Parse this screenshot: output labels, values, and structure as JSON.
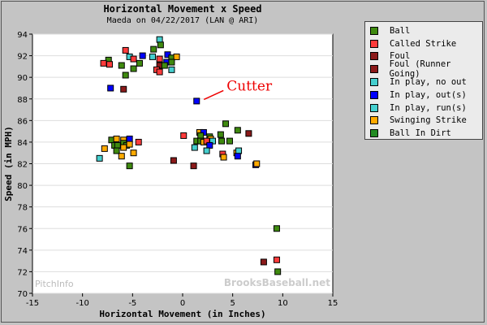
{
  "chart_data": {
    "type": "scatter",
    "title": "Horizontal Movement x Speed",
    "subtitle": "Maeda on 04/22/2017 (LAN @ ARI)",
    "xlabel": "Horizontal Movement (in Inches)",
    "ylabel": "Speed (in MPH)",
    "xlim": [
      -15,
      15
    ],
    "ylim": [
      70,
      94
    ],
    "xticks": [
      -15,
      -10,
      -5,
      0,
      5,
      10,
      15
    ],
    "yticks": [
      70,
      72,
      74,
      76,
      78,
      80,
      82,
      84,
      86,
      88,
      90,
      92,
      94
    ],
    "grid": "horizontal",
    "legend_position": "right",
    "annotation": {
      "text": "Cutter",
      "x": 1.4,
      "y": 87.8
    },
    "watermarks": [
      "PitchInfo",
      "BrooksBaseball.net"
    ],
    "categories": [
      {
        "name": "Ball",
        "color": "#3f8a0f"
      },
      {
        "name": "Called Strike",
        "color": "#ff3b3b"
      },
      {
        "name": "Foul",
        "color": "#8b1a1a"
      },
      {
        "name": "Foul (Runner Going)",
        "color": "#8b1a1a"
      },
      {
        "name": "In play, no out",
        "color": "#45cfcf"
      },
      {
        "name": "In play, out(s)",
        "color": "#0000ff"
      },
      {
        "name": "In play, run(s)",
        "color": "#45cfcf"
      },
      {
        "name": "Swinging Strike",
        "color": "#ffaa00"
      },
      {
        "name": "Ball In Dirt",
        "color": "#228b22"
      }
    ],
    "points": [
      {
        "x": -2.3,
        "y": 93.5,
        "c": 4
      },
      {
        "x": -2.2,
        "y": 93.0,
        "c": 0
      },
      {
        "x": -2.9,
        "y": 92.6,
        "c": 0
      },
      {
        "x": -5.7,
        "y": 92.5,
        "c": 1
      },
      {
        "x": -4.0,
        "y": 92.0,
        "c": 5
      },
      {
        "x": -5.3,
        "y": 91.9,
        "c": 4
      },
      {
        "x": -3.0,
        "y": 91.9,
        "c": 4
      },
      {
        "x": -4.9,
        "y": 91.7,
        "c": 1
      },
      {
        "x": -2.3,
        "y": 91.7,
        "c": 1
      },
      {
        "x": -1.5,
        "y": 92.1,
        "c": 5
      },
      {
        "x": -1.1,
        "y": 91.8,
        "c": 0
      },
      {
        "x": -0.6,
        "y": 91.9,
        "c": 7
      },
      {
        "x": -1.6,
        "y": 91.4,
        "c": 5
      },
      {
        "x": -1.1,
        "y": 91.4,
        "c": 0
      },
      {
        "x": -4.3,
        "y": 91.3,
        "c": 0
      },
      {
        "x": -2.3,
        "y": 91.1,
        "c": 2
      },
      {
        "x": -1.8,
        "y": 91.1,
        "c": 0
      },
      {
        "x": -7.4,
        "y": 91.6,
        "c": 0
      },
      {
        "x": -7.9,
        "y": 91.3,
        "c": 1
      },
      {
        "x": -7.3,
        "y": 91.2,
        "c": 1
      },
      {
        "x": -6.1,
        "y": 91.1,
        "c": 0
      },
      {
        "x": -4.9,
        "y": 90.8,
        "c": 0
      },
      {
        "x": -2.6,
        "y": 90.7,
        "c": 1
      },
      {
        "x": -2.3,
        "y": 90.5,
        "c": 1
      },
      {
        "x": -1.1,
        "y": 90.7,
        "c": 4
      },
      {
        "x": -5.7,
        "y": 90.2,
        "c": 0
      },
      {
        "x": -7.2,
        "y": 89.0,
        "c": 5
      },
      {
        "x": -5.9,
        "y": 88.9,
        "c": 2
      },
      {
        "x": 1.4,
        "y": 87.8,
        "c": 5
      },
      {
        "x": -7.1,
        "y": 84.2,
        "c": 0
      },
      {
        "x": -6.6,
        "y": 84.3,
        "c": 7
      },
      {
        "x": -5.9,
        "y": 84.2,
        "c": 7
      },
      {
        "x": -5.3,
        "y": 84.3,
        "c": 5
      },
      {
        "x": -4.4,
        "y": 84.0,
        "c": 1
      },
      {
        "x": -6.8,
        "y": 83.7,
        "c": 0
      },
      {
        "x": -6.5,
        "y": 83.7,
        "c": 0
      },
      {
        "x": -5.9,
        "y": 83.9,
        "c": 0
      },
      {
        "x": -5.6,
        "y": 83.7,
        "c": 0
      },
      {
        "x": -5.3,
        "y": 83.8,
        "c": 7
      },
      {
        "x": -5.9,
        "y": 83.5,
        "c": 7
      },
      {
        "x": -7.8,
        "y": 83.4,
        "c": 7
      },
      {
        "x": -6.6,
        "y": 83.2,
        "c": 0
      },
      {
        "x": -4.9,
        "y": 83.0,
        "c": 7
      },
      {
        "x": -6.1,
        "y": 82.7,
        "c": 7
      },
      {
        "x": -8.3,
        "y": 82.5,
        "c": 4
      },
      {
        "x": -5.3,
        "y": 81.8,
        "c": 0
      },
      {
        "x": 4.3,
        "y": 85.7,
        "c": 0
      },
      {
        "x": 5.5,
        "y": 85.1,
        "c": 0
      },
      {
        "x": 6.6,
        "y": 84.8,
        "c": 2
      },
      {
        "x": 0.1,
        "y": 84.6,
        "c": 1
      },
      {
        "x": 1.7,
        "y": 84.9,
        "c": 7
      },
      {
        "x": 2.1,
        "y": 84.9,
        "c": 5
      },
      {
        "x": 1.8,
        "y": 84.6,
        "c": 0
      },
      {
        "x": 2.7,
        "y": 84.5,
        "c": 0
      },
      {
        "x": 2.8,
        "y": 84.3,
        "c": 7
      },
      {
        "x": 3.0,
        "y": 84.1,
        "c": 4
      },
      {
        "x": 3.8,
        "y": 84.7,
        "c": 0
      },
      {
        "x": 1.4,
        "y": 84.1,
        "c": 0
      },
      {
        "x": 1.8,
        "y": 84.1,
        "c": 0
      },
      {
        "x": 2.1,
        "y": 84.0,
        "c": 7
      },
      {
        "x": 2.4,
        "y": 84.1,
        "c": 1
      },
      {
        "x": 3.9,
        "y": 84.1,
        "c": 0
      },
      {
        "x": 4.7,
        "y": 84.1,
        "c": 0
      },
      {
        "x": 2.7,
        "y": 83.7,
        "c": 5
      },
      {
        "x": 1.2,
        "y": 83.5,
        "c": 4
      },
      {
        "x": 2.4,
        "y": 83.2,
        "c": 4
      },
      {
        "x": 4.0,
        "y": 82.9,
        "c": 1
      },
      {
        "x": 4.1,
        "y": 82.6,
        "c": 7
      },
      {
        "x": 5.4,
        "y": 83.0,
        "c": 7
      },
      {
        "x": 5.6,
        "y": 83.2,
        "c": 4
      },
      {
        "x": 5.5,
        "y": 82.7,
        "c": 5
      },
      {
        "x": -0.9,
        "y": 82.3,
        "c": 2
      },
      {
        "x": 1.1,
        "y": 81.8,
        "c": 2
      },
      {
        "x": 7.3,
        "y": 81.9,
        "c": 5
      },
      {
        "x": 7.4,
        "y": 82.0,
        "c": 7
      },
      {
        "x": 9.4,
        "y": 76.0,
        "c": 0
      },
      {
        "x": 8.1,
        "y": 72.9,
        "c": 2
      },
      {
        "x": 9.4,
        "y": 73.1,
        "c": 1
      },
      {
        "x": 9.5,
        "y": 72.0,
        "c": 0
      }
    ]
  }
}
